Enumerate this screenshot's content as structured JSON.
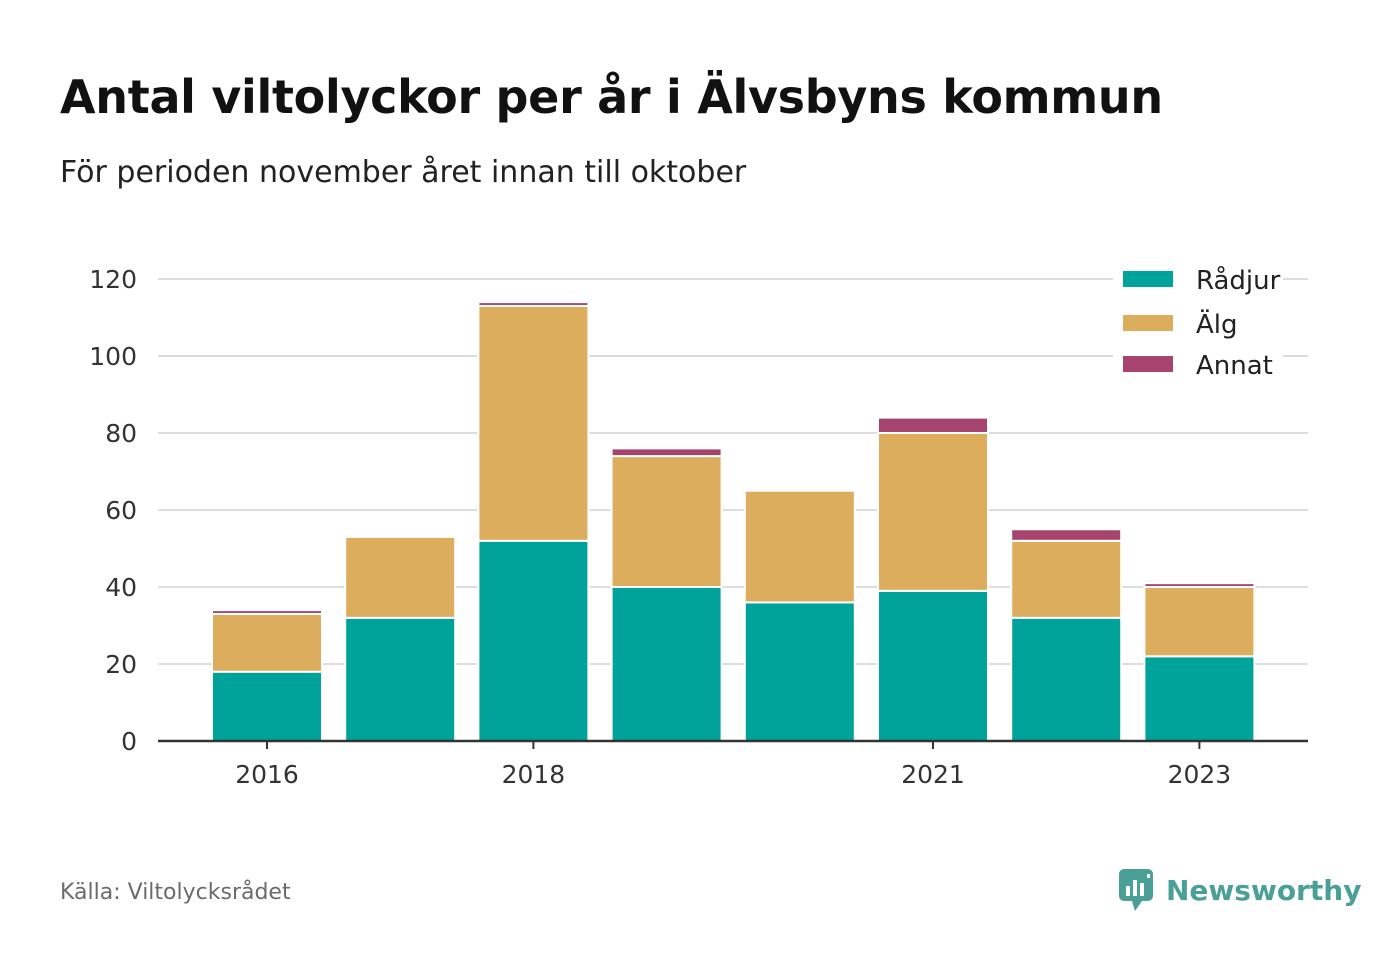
{
  "header": {
    "title": "Antal viltolyckor per år i Älvsbyns kommun",
    "subtitle": "För perioden november året innan till oktober"
  },
  "footer": {
    "source": "Källa: Viltolycksrådet",
    "brand": "Newsworthy",
    "brand_icon": "bar-chart-speech-bubble-icon",
    "brand_color": "#4aa096"
  },
  "chart_data": {
    "type": "bar",
    "stacked": true,
    "categories": [
      "2016",
      "2017",
      "2018",
      "2019",
      "2020",
      "2021",
      "2022",
      "2023"
    ],
    "tick_labels": [
      "2016",
      "",
      "2018",
      "",
      "",
      "2021",
      "",
      "2023"
    ],
    "series": [
      {
        "name": "Rådjur",
        "color": "#00a399",
        "values": [
          18,
          32,
          52,
          40,
          36,
          39,
          32,
          22
        ]
      },
      {
        "name": "Älg",
        "color": "#dbad5c",
        "values": [
          15,
          21,
          61,
          34,
          29,
          41,
          20,
          18
        ]
      },
      {
        "name": "Annat",
        "color": "#a6436e",
        "values": [
          1,
          0,
          1,
          2,
          0,
          4,
          3,
          1
        ]
      }
    ],
    "ylim": [
      0,
      120
    ],
    "yticks": [
      0,
      20,
      40,
      60,
      80,
      100,
      120
    ],
    "xlabel": "",
    "ylabel": "",
    "grid": true,
    "legend_position": "top-right"
  }
}
